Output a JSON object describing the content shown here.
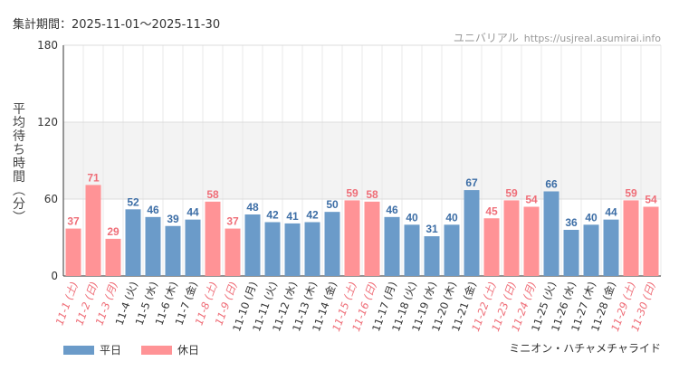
{
  "header": {
    "period": "集計期間：2025-11-01〜2025-11-30",
    "credit_name": "ユニバリアル",
    "credit_site": "https://usjreal.asumirai.info"
  },
  "legend": {
    "weekday": "平日",
    "holiday": "休日"
  },
  "colors": {
    "weekday": "#6b9bc9",
    "holiday": "#ff9396",
    "weekday_text": "#3d6ea6",
    "holiday_text": "#ef6e78",
    "band": "#f3f3f3"
  },
  "chart_data": {
    "type": "bar",
    "title": "ミニオン・ハチャメチャライド",
    "ylabel": "平均待ち時間（分）",
    "xlabel": "",
    "ylim": [
      0,
      180
    ],
    "yticks": [
      0,
      60,
      120,
      180
    ],
    "grid": true,
    "legend_position": "bottom-left",
    "categories": [
      "11-1 (土)",
      "11-2 (日)",
      "11-3 (月)",
      "11-4 (火)",
      "11-5 (水)",
      "11-6 (木)",
      "11-7 (金)",
      "11-8 (土)",
      "11-9 (日)",
      "11-10 (月)",
      "11-11 (火)",
      "11-12 (水)",
      "11-13 (木)",
      "11-14 (金)",
      "11-15 (土)",
      "11-16 (日)",
      "11-17 (月)",
      "11-18 (火)",
      "11-19 (水)",
      "11-20 (木)",
      "11-21 (金)",
      "11-22 (土)",
      "11-23 (日)",
      "11-24 (月)",
      "11-25 (火)",
      "11-26 (水)",
      "11-27 (木)",
      "11-28 (金)",
      "11-29 (土)",
      "11-30 (日)"
    ],
    "values": [
      37,
      71,
      29,
      52,
      46,
      39,
      44,
      58,
      37,
      48,
      42,
      41,
      42,
      50,
      59,
      58,
      46,
      40,
      31,
      40,
      67,
      45,
      59,
      54,
      66,
      36,
      40,
      44,
      59,
      54
    ],
    "day_type": [
      "休日",
      "休日",
      "休日",
      "平日",
      "平日",
      "平日",
      "平日",
      "休日",
      "休日",
      "平日",
      "平日",
      "平日",
      "平日",
      "平日",
      "休日",
      "休日",
      "平日",
      "平日",
      "平日",
      "平日",
      "平日",
      "休日",
      "休日",
      "休日",
      "平日",
      "平日",
      "平日",
      "平日",
      "休日",
      "休日"
    ]
  }
}
